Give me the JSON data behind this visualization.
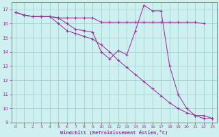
{
  "xlabel": "Windchill (Refroidissement éolien,°C)",
  "xlim": [
    -0.5,
    23.5
  ],
  "ylim": [
    9,
    17.5
  ],
  "xticks": [
    0,
    1,
    2,
    3,
    4,
    5,
    6,
    7,
    8,
    9,
    10,
    11,
    12,
    13,
    14,
    15,
    16,
    17,
    18,
    19,
    20,
    21,
    22,
    23
  ],
  "yticks": [
    9,
    10,
    11,
    12,
    13,
    14,
    15,
    16,
    17
  ],
  "bg_color": "#cff0f0",
  "line_color": "#993399",
  "grid_color": "#99cccc",
  "line1_x": [
    0,
    1,
    2,
    3,
    4,
    5,
    6,
    7,
    8,
    9,
    10,
    11,
    12,
    13,
    14,
    15,
    16,
    17,
    18,
    19,
    20,
    21,
    22
  ],
  "line1_y": [
    16.8,
    16.6,
    16.5,
    16.5,
    16.5,
    16.4,
    16.4,
    16.4,
    16.4,
    16.4,
    16.1,
    16.1,
    16.1,
    16.1,
    16.1,
    16.1,
    16.1,
    16.1,
    16.1,
    16.1,
    16.1,
    16.1,
    16.0
  ],
  "line2_x": [
    0,
    1,
    2,
    3,
    4,
    5,
    6,
    7,
    8,
    9,
    10,
    11,
    12,
    13,
    14,
    15,
    16,
    17,
    18,
    19,
    20,
    21,
    22,
    23
  ],
  "line2_y": [
    16.8,
    16.6,
    16.5,
    16.5,
    16.5,
    16.4,
    16.0,
    15.6,
    15.5,
    15.4,
    14.0,
    13.5,
    14.1,
    13.8,
    15.5,
    17.3,
    16.9,
    16.9,
    13.0,
    11.0,
    10.0,
    9.5,
    9.5,
    9.3
  ],
  "line3_x": [
    0,
    1,
    2,
    3,
    4,
    5,
    6,
    7,
    8,
    9,
    10,
    11,
    12,
    13,
    14,
    15,
    16,
    17,
    18,
    19,
    20,
    21,
    22,
    23
  ],
  "line3_y": [
    16.8,
    16.6,
    16.5,
    16.5,
    16.5,
    16.0,
    15.5,
    15.3,
    15.1,
    14.9,
    14.5,
    14.0,
    13.4,
    12.9,
    12.4,
    11.9,
    11.4,
    10.9,
    10.4,
    10.0,
    9.7,
    9.5,
    9.3,
    9.3
  ]
}
